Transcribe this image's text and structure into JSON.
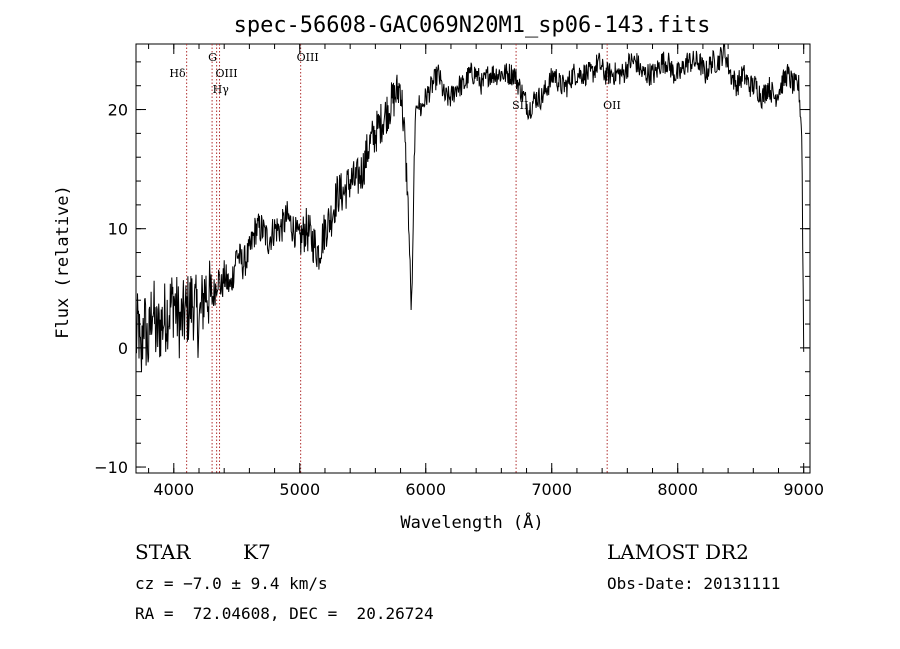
{
  "chart_data": {
    "type": "line",
    "title": "spec-56608-GAC069N20M1_sp06-143.fits",
    "xlabel": "Wavelength (Å)",
    "ylabel": "Flux (relative)",
    "xlim": [
      3700,
      9050
    ],
    "ylim": [
      -10.5,
      25.5
    ],
    "x_ticks": [
      4000,
      5000,
      6000,
      7000,
      8000,
      9000
    ],
    "y_ticks": [
      -10,
      0,
      10,
      20
    ],
    "x_minor_step": 200,
    "y_minor_step": 2,
    "grid": false,
    "spectrum_color": "#000000",
    "line_marker_color": "#b03030",
    "series": [
      {
        "x": [
          3700,
          3720,
          3740,
          3760,
          3780,
          3800,
          3830,
          3860,
          3900,
          3950,
          4000,
          4050,
          4100,
          4150,
          4200,
          4250,
          4300,
          4330,
          4350,
          4380,
          4400,
          4450,
          4500,
          4550,
          4600,
          4650,
          4700,
          4750,
          4800,
          4850,
          4900,
          4950,
          5000,
          5050,
          5100,
          5150,
          5200,
          5250,
          5300,
          5350,
          5400,
          5450,
          5500,
          5550,
          5600,
          5650,
          5700,
          5750,
          5800,
          5830,
          5860,
          5875,
          5885,
          5893,
          5900,
          5910,
          5930,
          5960,
          6000,
          6050,
          6100,
          6150,
          6200,
          6250,
          6300,
          6350,
          6400,
          6450,
          6500,
          6550,
          6600,
          6650,
          6700,
          6740,
          6780,
          6820,
          6870,
          6920,
          6970,
          7020,
          7070,
          7120,
          7170,
          7220,
          7270,
          7320,
          7370,
          7420,
          7470,
          7520,
          7570,
          7620,
          7670,
          7720,
          7770,
          7820,
          7870,
          7920,
          7970,
          8020,
          8070,
          8120,
          8170,
          8220,
          8270,
          8320,
          8370,
          8420,
          8470,
          8520,
          8570,
          8620,
          8670,
          8720,
          8770,
          8820,
          8870,
          8920,
          8960,
          8985,
          8993,
          9000
        ],
        "y": [
          0.5,
          2,
          -2,
          3,
          1,
          0,
          4,
          1,
          2,
          3,
          4,
          2,
          3,
          4,
          2,
          5,
          4,
          5,
          6,
          5,
          6,
          5,
          8,
          7,
          8,
          10,
          10,
          9,
          10,
          10,
          11,
          10,
          9,
          10,
          9,
          8,
          10,
          11,
          13,
          13,
          14,
          14,
          15,
          17,
          18,
          19,
          20,
          21,
          22,
          18,
          12,
          7,
          3,
          6,
          10,
          17,
          21,
          20,
          21,
          22,
          23,
          21,
          21,
          22,
          22,
          23,
          23,
          22,
          23,
          23,
          23,
          23,
          23,
          22,
          21,
          20,
          21,
          21,
          22,
          23,
          22,
          22,
          23,
          23,
          23,
          23,
          24,
          23,
          23,
          23,
          23,
          24,
          24,
          23,
          23,
          23,
          24,
          24,
          23,
          23,
          24,
          24,
          24,
          23,
          24,
          24,
          25,
          23,
          22,
          23,
          22,
          22,
          21,
          22,
          21,
          22,
          23,
          22,
          22,
          18,
          8,
          0
        ]
      }
    ],
    "line_markers": [
      {
        "x": 4102,
        "label": "Hδ",
        "label_row": 1,
        "label_side": "left"
      },
      {
        "x": 4304,
        "label": "G",
        "label_row": 0,
        "label_side": "right"
      },
      {
        "x": 4340,
        "label": "Hγ",
        "label_row": 2,
        "label_side": "right"
      },
      {
        "x": 4363,
        "label": "OIII",
        "label_row": 1,
        "label_side": "right"
      },
      {
        "x": 5007,
        "label": "OIII",
        "label_row": 0,
        "label_side": "right"
      },
      {
        "x": 6717,
        "label": "SII",
        "label_row": 3,
        "label_side": "right"
      },
      {
        "x": 7440,
        "label": "OII",
        "label_row": 3,
        "label_side": "right"
      }
    ]
  },
  "info": {
    "object_class": "STAR",
    "subclass": "K7",
    "survey": "LAMOST DR2",
    "redshift_line": "cz = −7.0 ± 9.4 km/s",
    "obs_date_line": "Obs-Date: 20131111",
    "coords_line": "RA =  72.04608, DEC =  20.26724"
  }
}
